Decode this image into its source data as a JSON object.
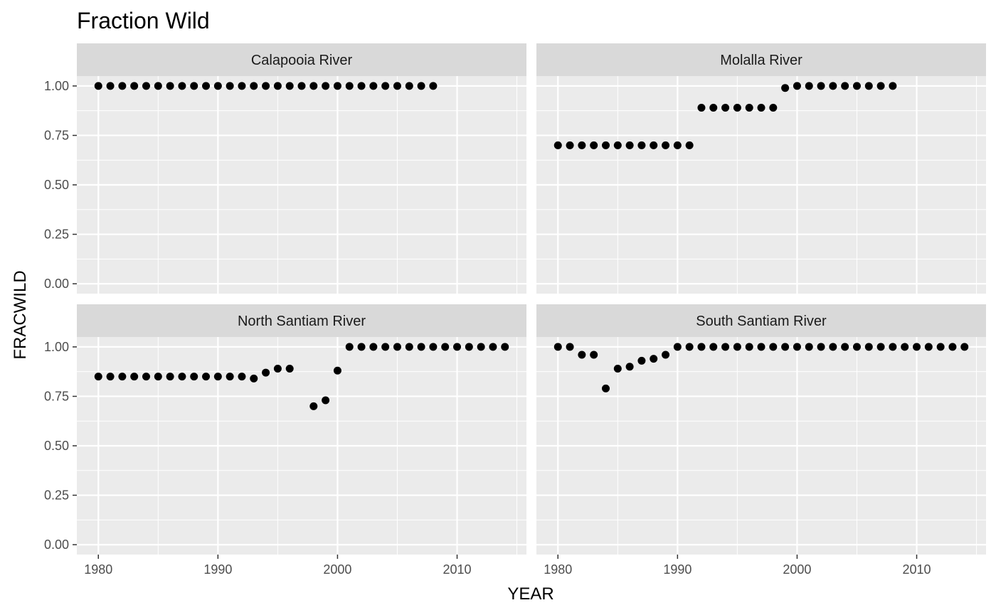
{
  "title": "Fraction Wild",
  "colors": {
    "panel_background": "#ebebeb",
    "strip_background": "#d9d9d9",
    "grid": "#ffffff",
    "point": "#000000",
    "tick": "#333333"
  },
  "chart_data": {
    "type": "scatter",
    "title": "Fraction Wild",
    "xlabel": "YEAR",
    "ylabel": "FRACWILD",
    "xlim": [
      1978.2,
      2015.8
    ],
    "ylim": [
      -0.05,
      1.05
    ],
    "x_ticks": [
      1980,
      1990,
      2000,
      2010
    ],
    "y_ticks": [
      0.0,
      0.25,
      0.5,
      0.75,
      1.0
    ],
    "y_tick_labels": [
      "0.00",
      "0.25",
      "0.50",
      "0.75",
      "1.00"
    ],
    "x_tick_labels": [
      "1980",
      "1990",
      "2000",
      "2010"
    ],
    "grid": true,
    "facets": [
      {
        "name": "Calapooia River",
        "x": [
          1980,
          1981,
          1982,
          1983,
          1984,
          1985,
          1986,
          1987,
          1988,
          1989,
          1990,
          1991,
          1992,
          1993,
          1994,
          1995,
          1996,
          1997,
          1998,
          1999,
          2000,
          2001,
          2002,
          2003,
          2004,
          2005,
          2006,
          2007,
          2008
        ],
        "y": [
          1,
          1,
          1,
          1,
          1,
          1,
          1,
          1,
          1,
          1,
          1,
          1,
          1,
          1,
          1,
          1,
          1,
          1,
          1,
          1,
          1,
          1,
          1,
          1,
          1,
          1,
          1,
          1,
          1
        ]
      },
      {
        "name": "Molalla River",
        "x": [
          1980,
          1981,
          1982,
          1983,
          1984,
          1985,
          1986,
          1987,
          1988,
          1989,
          1990,
          1991,
          1992,
          1993,
          1994,
          1995,
          1996,
          1997,
          1998,
          1999,
          2000,
          2001,
          2002,
          2003,
          2004,
          2005,
          2006,
          2007,
          2008
        ],
        "y": [
          0.7,
          0.7,
          0.7,
          0.7,
          0.7,
          0.7,
          0.7,
          0.7,
          0.7,
          0.7,
          0.7,
          0.7,
          0.89,
          0.89,
          0.89,
          0.89,
          0.89,
          0.89,
          0.89,
          0.99,
          1,
          1,
          1,
          1,
          1,
          1,
          1,
          1,
          1
        ]
      },
      {
        "name": "North Santiam River",
        "x": [
          1980,
          1981,
          1982,
          1983,
          1984,
          1985,
          1986,
          1987,
          1988,
          1989,
          1990,
          1991,
          1992,
          1993,
          1994,
          1995,
          1996,
          1998,
          1999,
          2000,
          2001,
          2002,
          2003,
          2004,
          2005,
          2006,
          2007,
          2008,
          2009,
          2010,
          2011,
          2012,
          2013,
          2014
        ],
        "y": [
          0.85,
          0.85,
          0.85,
          0.85,
          0.85,
          0.85,
          0.85,
          0.85,
          0.85,
          0.85,
          0.85,
          0.85,
          0.85,
          0.84,
          0.87,
          0.89,
          0.89,
          0.7,
          0.73,
          0.88,
          1,
          1,
          1,
          1,
          1,
          1,
          1,
          1,
          1,
          1,
          1,
          1,
          1,
          1
        ]
      },
      {
        "name": "South Santiam River",
        "x": [
          1980,
          1981,
          1982,
          1983,
          1984,
          1985,
          1986,
          1987,
          1988,
          1989,
          1990,
          1991,
          1992,
          1993,
          1994,
          1995,
          1996,
          1997,
          1998,
          1999,
          2000,
          2001,
          2002,
          2003,
          2004,
          2005,
          2006,
          2007,
          2008,
          2009,
          2010,
          2011,
          2012,
          2013,
          2014
        ],
        "y": [
          1,
          1,
          0.96,
          0.96,
          0.79,
          0.89,
          0.9,
          0.93,
          0.94,
          0.96,
          1,
          1,
          1,
          1,
          1,
          1,
          1,
          1,
          1,
          1,
          1,
          1,
          1,
          1,
          1,
          1,
          1,
          1,
          1,
          1,
          1,
          1,
          1,
          1,
          1
        ]
      }
    ]
  }
}
